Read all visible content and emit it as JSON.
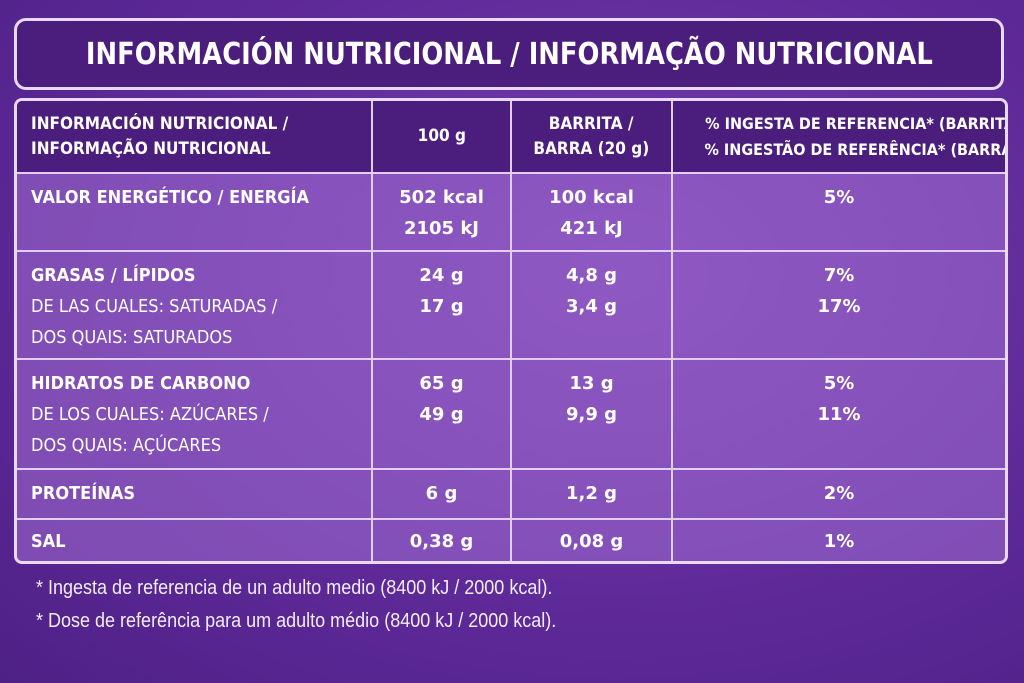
{
  "title": "INFORMACIÓN NUTRICIONAL / INFORMAÇÃO NUTRICIONAL",
  "table": {
    "headers": [
      [
        "INFORMACIÓN NUTRICIONAL /",
        "INFORMAÇÃO NUTRICIONAL"
      ],
      [
        "100 g"
      ],
      [
        "BARRITA /",
        "BARRA (20 g)"
      ],
      [
        "% INGESTA DE REFERENCIA* (BARRITA) /",
        "% INGESTÃO DE REFERÊNCIA* (BARRA)"
      ]
    ],
    "rows": [
      {
        "label": "VALOR ENERGÉTICO / ENERGÍA",
        "sub": [],
        "per100g": [
          "502 kcal",
          "2105 kJ"
        ],
        "bar": [
          "100 kcal",
          "421 kJ"
        ],
        "ri": [
          "5%"
        ]
      },
      {
        "label": "GRASAS / LÍPIDOS",
        "sub": [
          "DE LAS CUALES: SATURADAS /",
          "DOS QUAIS: SATURADOS"
        ],
        "per100g": [
          "24 g",
          "17 g"
        ],
        "bar": [
          "4,8 g",
          "3,4 g"
        ],
        "ri": [
          "7%",
          "17%"
        ]
      },
      {
        "label": "HIDRATOS DE CARBONO",
        "sub": [
          "DE LOS CUALES: AZÚCARES  /",
          "DOS QUAIS: AÇÚCARES"
        ],
        "per100g": [
          "65 g",
          "49 g"
        ],
        "bar": [
          "13 g",
          "9,9 g"
        ],
        "ri": [
          "5%",
          "11%"
        ]
      },
      {
        "label": "PROTEÍNAS",
        "sub": [],
        "per100g": [
          "6 g"
        ],
        "bar": [
          "1,2 g"
        ],
        "ri": [
          "2%"
        ]
      },
      {
        "label": "SAL",
        "sub": [],
        "per100g": [
          "0,38 g"
        ],
        "bar": [
          "0,08 g"
        ],
        "ri": [
          "1%"
        ]
      }
    ]
  },
  "footnotes": [
    "* Ingesta de referencia de un adulto medio (8400 kJ / 2000 kcal).",
    "* Dose de referência para um adulto médio (8400 kJ / 2000 kcal)."
  ],
  "colors": {
    "background": "#5f2a99",
    "header_bg": "#4b1e7d",
    "cell_bg": "#9a6ad0",
    "border": "#e3cdf3"
  }
}
